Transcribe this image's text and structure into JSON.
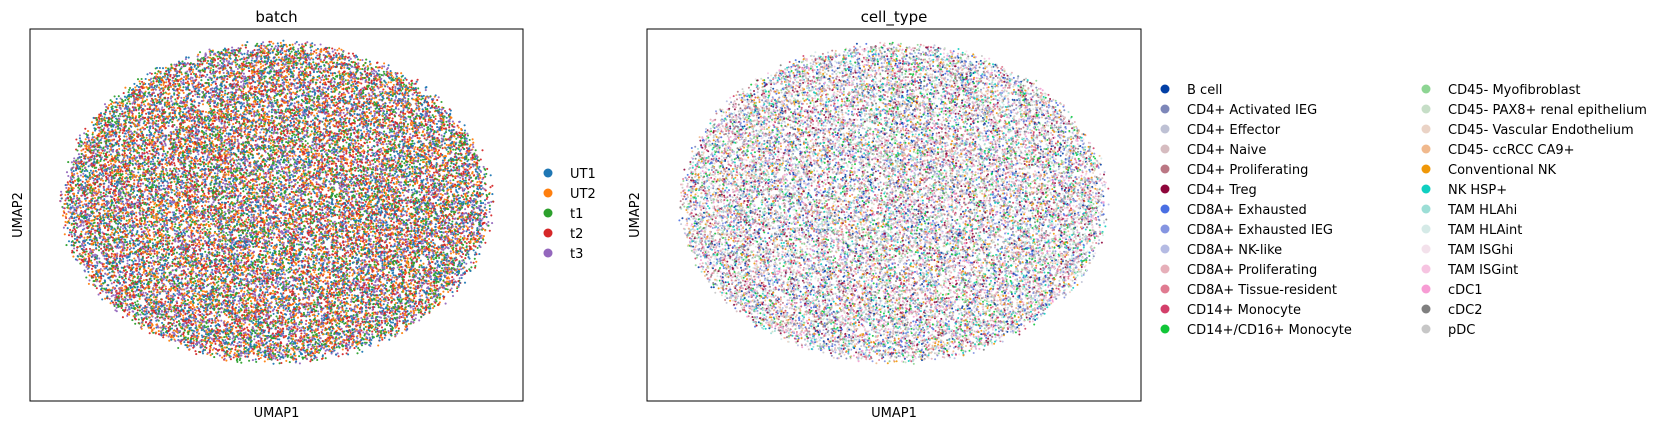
{
  "chart_data": [
    {
      "type": "scatter",
      "title": "batch",
      "xlabel": "UMAP1",
      "ylabel": "UMAP2",
      "xticks": [],
      "yticks": [],
      "grid": false,
      "legend_placement": "right",
      "legend_columns": 1,
      "point_density": "very dense, overlapping",
      "series": [
        {
          "name": "UT1",
          "color": "#1f77b4"
        },
        {
          "name": "UT2",
          "color": "#ff7f0e"
        },
        {
          "name": "t1",
          "color": "#2ca02c"
        },
        {
          "name": "t2",
          "color": "#d62728"
        },
        {
          "name": "t3",
          "color": "#9467bd"
        }
      ]
    },
    {
      "type": "scatter",
      "title": "cell_type",
      "xlabel": "UMAP1",
      "ylabel": "UMAP2",
      "xticks": [],
      "yticks": [],
      "grid": false,
      "legend_placement": "right",
      "legend_columns": 2,
      "point_density": "dense, overlapping",
      "series": [
        {
          "name": "B cell",
          "color": "#023fa5"
        },
        {
          "name": "CD4+ Activated IEG",
          "color": "#7d87b9"
        },
        {
          "name": "CD4+ Effector",
          "color": "#bec1d4"
        },
        {
          "name": "CD4+ Naive",
          "color": "#d6bcc0"
        },
        {
          "name": "CD4+ Proliferating",
          "color": "#bb7784"
        },
        {
          "name": "CD4+ Treg",
          "color": "#8e063b"
        },
        {
          "name": "CD8A+ Exhausted",
          "color": "#4a6fe3"
        },
        {
          "name": "CD8A+ Exhausted IEG",
          "color": "#8595e1"
        },
        {
          "name": "CD8A+ NK-like",
          "color": "#b5bbe3"
        },
        {
          "name": "CD8A+ Proliferating",
          "color": "#e6afb9"
        },
        {
          "name": "CD8A+ Tissue-resident",
          "color": "#e07b91"
        },
        {
          "name": "CD14+ Monocyte",
          "color": "#d33f6a"
        },
        {
          "name": "CD14+/CD16+ Monocyte",
          "color": "#11c638"
        },
        {
          "name": "CD45- Myofibroblast",
          "color": "#8dd593"
        },
        {
          "name": "CD45- PAX8+ renal epithelium",
          "color": "#c6dec7"
        },
        {
          "name": "CD45- Vascular Endothelium",
          "color": "#ead3c6"
        },
        {
          "name": "CD45- ccRCC CA9+",
          "color": "#f0b98d"
        },
        {
          "name": "Conventional NK",
          "color": "#ef9708"
        },
        {
          "name": "NK HSP+",
          "color": "#0fcfc0"
        },
        {
          "name": "TAM HLAhi",
          "color": "#9cded6"
        },
        {
          "name": "TAM HLAint",
          "color": "#d5eae7"
        },
        {
          "name": "TAM ISGhi",
          "color": "#f3e1eb"
        },
        {
          "name": "TAM ISGint",
          "color": "#f6c4e1"
        },
        {
          "name": "cDC1",
          "color": "#f79cd4"
        },
        {
          "name": "cDC2",
          "color": "#7f7f7f"
        },
        {
          "name": "pDC",
          "color": "#c7c7c7"
        }
      ]
    }
  ]
}
